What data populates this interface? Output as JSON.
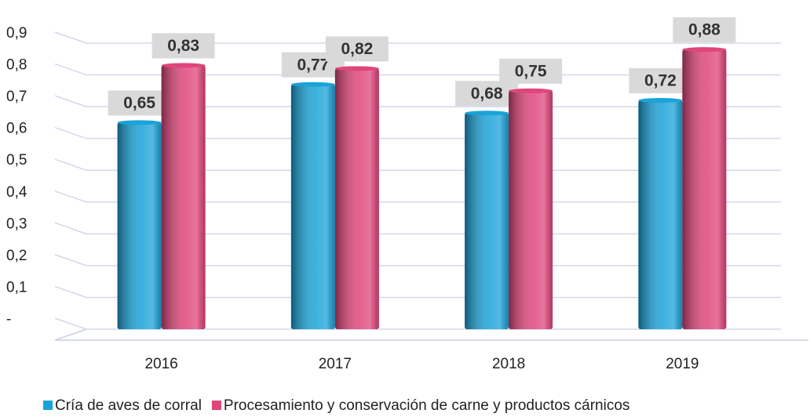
{
  "chart_data": {
    "type": "bar",
    "categories": [
      "2016",
      "2017",
      "2018",
      "2019"
    ],
    "series": [
      {
        "name": "Cría de aves de corral",
        "color": "#1aa3d9",
        "values": [
          0.65,
          0.77,
          0.68,
          0.72
        ],
        "value_labels": [
          "0,65",
          "0,77",
          "0,68",
          "0,72"
        ]
      },
      {
        "name": "Procesamiento y conservación de carne y productos cárnicos",
        "color": "#e0457b",
        "values": [
          0.83,
          0.82,
          0.75,
          0.88
        ],
        "value_labels": [
          "0,83",
          "0,82",
          "0,75",
          "0,88"
        ]
      }
    ],
    "ylim": [
      0,
      0.9
    ],
    "yticks": [
      {
        "value": 0,
        "label": "-"
      },
      {
        "value": 0.1,
        "label": "0,1"
      },
      {
        "value": 0.2,
        "label": "0,2"
      },
      {
        "value": 0.3,
        "label": "0,3"
      },
      {
        "value": 0.4,
        "label": "0,4"
      },
      {
        "value": 0.5,
        "label": "0,5"
      },
      {
        "value": 0.6,
        "label": "0,6"
      },
      {
        "value": 0.7,
        "label": "0,7"
      },
      {
        "value": 0.8,
        "label": "0,8"
      },
      {
        "value": 0.9,
        "label": "0,9"
      }
    ],
    "grid": true,
    "legend": "bottom"
  }
}
